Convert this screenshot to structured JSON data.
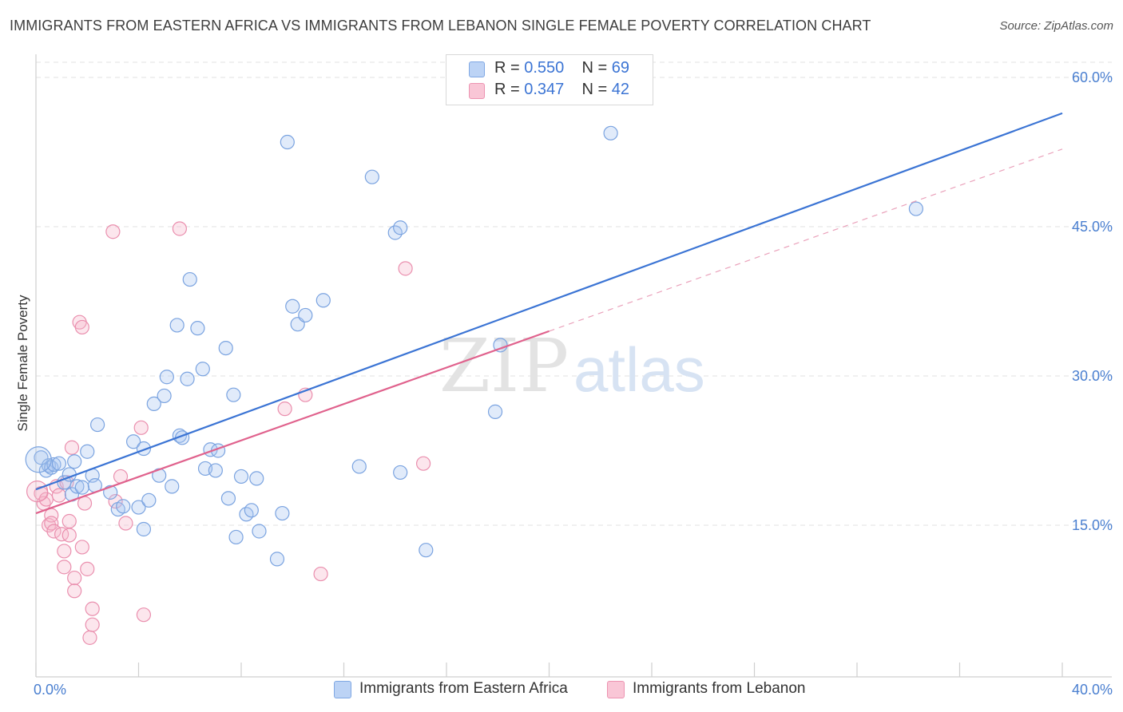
{
  "title": "IMMIGRANTS FROM EASTERN AFRICA VS IMMIGRANTS FROM LEBANON SINGLE FEMALE POVERTY CORRELATION CHART",
  "source": "Source: ZipAtlas.com",
  "watermark": {
    "zip": "ZIP",
    "atlas": "atlas"
  },
  "legend": {
    "r_label": "R =",
    "n_label": "N =",
    "series1": {
      "r": "0.550",
      "n": "69"
    },
    "series2": {
      "r": "0.347",
      "n": "42"
    }
  },
  "chart_data": {
    "type": "scatter",
    "title": "IMMIGRANTS FROM EASTERN AFRICA VS IMMIGRANTS FROM LEBANON SINGLE FEMALE POVERTY CORRELATION CHART",
    "xlabel": "",
    "ylabel": "Single Female Poverty",
    "xlim": [
      0,
      40
    ],
    "ylim": [
      0,
      62
    ],
    "x_tick_labels": [
      "0.0%",
      "40.0%"
    ],
    "y_ticks": [
      15,
      30,
      45,
      60
    ],
    "y_tick_labels": [
      "15.0%",
      "30.0%",
      "45.0%",
      "60.0%"
    ],
    "colors": {
      "blue": "#3b74d4",
      "blue_fill": "#a9c6f0",
      "pink": "#e0628d",
      "pink_fill": "#f5b6ca",
      "tick_label": "#4a7fd0"
    },
    "series": [
      {
        "name": "Immigrants from Eastern Africa",
        "color": "#3b74d4",
        "R": 0.55,
        "N": 69,
        "trendline": {
          "x": [
            0,
            40
          ],
          "y": [
            18.6,
            56.4
          ],
          "style": "solid"
        },
        "points": [
          [
            0.2,
            21.8
          ],
          [
            0.4,
            20.5
          ],
          [
            0.5,
            21.0
          ],
          [
            0.6,
            20.8
          ],
          [
            0.7,
            21.1
          ],
          [
            0.9,
            21.2
          ],
          [
            1.1,
            19.3
          ],
          [
            1.3,
            20.1
          ],
          [
            1.4,
            18.1
          ],
          [
            1.5,
            21.4
          ],
          [
            1.6,
            18.9
          ],
          [
            1.8,
            18.8
          ],
          [
            2.0,
            22.4
          ],
          [
            2.2,
            20.0
          ],
          [
            2.3,
            19.0
          ],
          [
            2.4,
            25.1
          ],
          [
            2.9,
            18.3
          ],
          [
            3.2,
            16.6
          ],
          [
            3.4,
            16.9
          ],
          [
            3.8,
            23.4
          ],
          [
            4.0,
            16.8
          ],
          [
            4.2,
            22.7
          ],
          [
            4.2,
            14.6
          ],
          [
            4.4,
            17.5
          ],
          [
            4.6,
            27.2
          ],
          [
            4.8,
            20.0
          ],
          [
            5.0,
            28.0
          ],
          [
            5.1,
            29.9
          ],
          [
            5.3,
            18.9
          ],
          [
            5.5,
            35.1
          ],
          [
            5.6,
            24.0
          ],
          [
            5.7,
            23.8
          ],
          [
            5.9,
            29.7
          ],
          [
            6.0,
            39.7
          ],
          [
            6.3,
            34.8
          ],
          [
            6.5,
            30.7
          ],
          [
            6.6,
            20.7
          ],
          [
            6.8,
            22.6
          ],
          [
            7.0,
            20.5
          ],
          [
            7.1,
            22.5
          ],
          [
            7.4,
            32.8
          ],
          [
            7.5,
            17.7
          ],
          [
            7.7,
            28.1
          ],
          [
            7.8,
            13.8
          ],
          [
            8.0,
            19.9
          ],
          [
            8.2,
            16.1
          ],
          [
            8.4,
            16.5
          ],
          [
            8.6,
            19.7
          ],
          [
            8.7,
            14.4
          ],
          [
            9.4,
            11.6
          ],
          [
            9.6,
            16.2
          ],
          [
            9.8,
            53.5
          ],
          [
            10.0,
            37.0
          ],
          [
            10.2,
            35.2
          ],
          [
            10.5,
            36.1
          ],
          [
            11.2,
            37.6
          ],
          [
            12.6,
            20.9
          ],
          [
            13.1,
            50.0
          ],
          [
            14.0,
            44.4
          ],
          [
            14.2,
            44.9
          ],
          [
            14.2,
            20.3
          ],
          [
            15.2,
            12.5
          ],
          [
            17.9,
            26.4
          ],
          [
            18.1,
            33.1
          ],
          [
            22.4,
            54.4
          ],
          [
            34.3,
            46.8
          ]
        ]
      },
      {
        "name": "Immigrants from Lebanon",
        "color": "#e0628d",
        "R": 0.347,
        "N": 42,
        "trendline": {
          "x": [
            0,
            20
          ],
          "y": [
            16.2,
            34.5
          ],
          "extended_to": [
            40,
            52.8
          ],
          "style": "solid_then_dashed"
        },
        "points": [
          [
            0.2,
            18.2
          ],
          [
            0.3,
            17.2
          ],
          [
            0.4,
            17.6
          ],
          [
            0.5,
            15.0
          ],
          [
            0.6,
            16.0
          ],
          [
            0.6,
            15.2
          ],
          [
            0.7,
            14.4
          ],
          [
            0.8,
            18.9
          ],
          [
            0.9,
            18.0
          ],
          [
            1.0,
            14.1
          ],
          [
            1.1,
            12.4
          ],
          [
            1.1,
            10.8
          ],
          [
            1.2,
            19.3
          ],
          [
            1.3,
            15.4
          ],
          [
            1.3,
            14.0
          ],
          [
            1.4,
            22.8
          ],
          [
            1.5,
            9.7
          ],
          [
            1.5,
            8.4
          ],
          [
            1.7,
            35.4
          ],
          [
            1.8,
            34.9
          ],
          [
            1.8,
            12.8
          ],
          [
            1.9,
            17.2
          ],
          [
            2.0,
            10.6
          ],
          [
            2.1,
            3.7
          ],
          [
            2.2,
            6.6
          ],
          [
            2.2,
            5.0
          ],
          [
            3.0,
            44.5
          ],
          [
            3.1,
            17.4
          ],
          [
            3.3,
            19.9
          ],
          [
            3.5,
            15.2
          ],
          [
            4.1,
            24.8
          ],
          [
            4.2,
            6.0
          ],
          [
            5.6,
            44.8
          ],
          [
            9.7,
            26.7
          ],
          [
            10.5,
            28.1
          ],
          [
            11.1,
            10.1
          ],
          [
            14.4,
            40.8
          ],
          [
            15.1,
            21.2
          ]
        ]
      }
    ],
    "legend_position": "top-center"
  }
}
